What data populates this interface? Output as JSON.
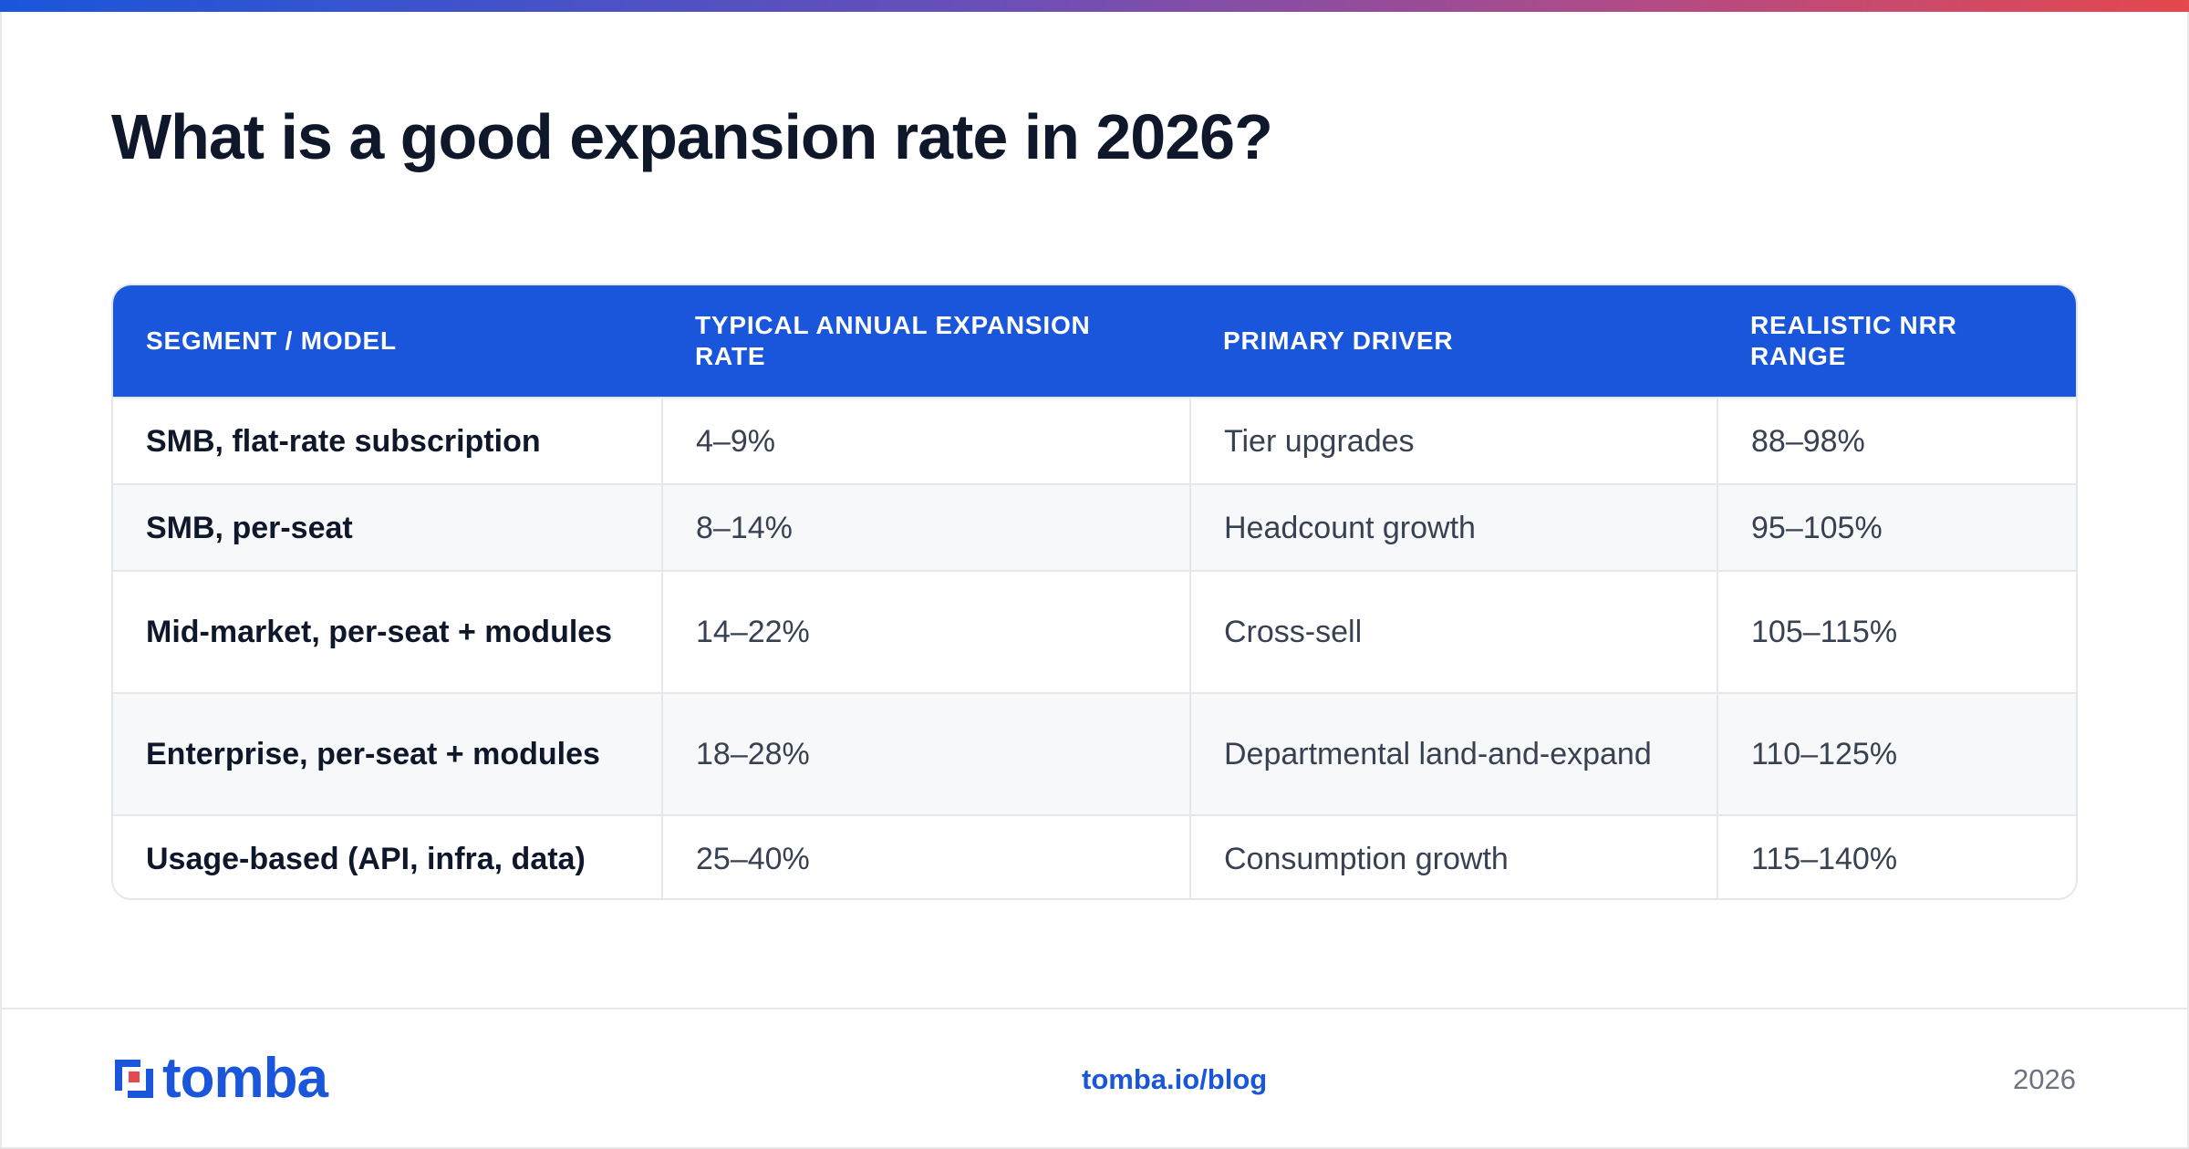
{
  "title": "What is a good expansion rate in 2026?",
  "table": {
    "headers": [
      "SEGMENT / MODEL",
      "TYPICAL ANNUAL EXPANSION RATE",
      "PRIMARY DRIVER",
      "REALISTIC NRR RANGE"
    ],
    "rows": [
      [
        "SMB, flat-rate subscription",
        "4–9%",
        "Tier upgrades",
        "88–98%"
      ],
      [
        "SMB, per-seat",
        "8–14%",
        "Headcount growth",
        "95–105%"
      ],
      [
        "Mid-market, per-seat + modules",
        "14–22%",
        "Cross-sell",
        "105–115%"
      ],
      [
        "Enterprise, per-seat + modules",
        "18–28%",
        "Departmental land-and-expand",
        "110–125%"
      ],
      [
        "Usage-based (API, infra, data)",
        "25–40%",
        "Consumption growth",
        "115–140%"
      ]
    ]
  },
  "footer": {
    "logo_text": "tomba",
    "link": "tomba.io/blog",
    "year": "2026"
  },
  "colors": {
    "accent": "#1a56db",
    "logo_red": "#e5484d",
    "title": "#0f172a"
  }
}
